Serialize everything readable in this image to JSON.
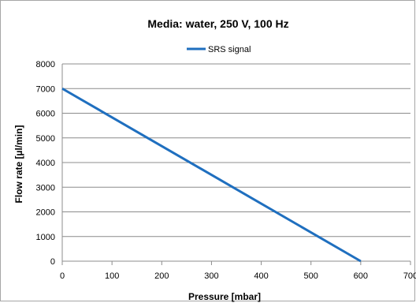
{
  "chart_data": {
    "type": "line",
    "title": "Media: water, 250 V, 100 Hz",
    "xlabel": "Pressure [mbar]",
    "ylabel": "Flow rate [µl/min]",
    "xlim": [
      0,
      700
    ],
    "ylim": [
      0,
      8000
    ],
    "x_ticks": [
      "0",
      "100",
      "200",
      "300",
      "400",
      "500",
      "600",
      "700"
    ],
    "y_ticks": [
      "0",
      "1000",
      "2000",
      "3000",
      "4000",
      "5000",
      "6000",
      "7000",
      "8000"
    ],
    "grid": "horizontal",
    "legend_position": "top",
    "series": [
      {
        "name": "SRS signal",
        "color": "#1f6fbf",
        "x": [
          0,
          600
        ],
        "y": [
          7000,
          0
        ]
      }
    ]
  }
}
